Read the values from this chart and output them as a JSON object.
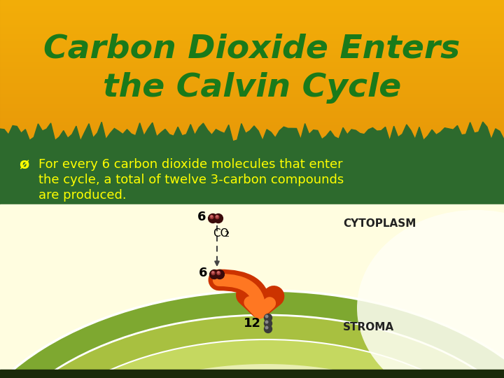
{
  "title_line1": "Carbon Dioxide Enters",
  "title_line2": "the Calvin Cycle",
  "title_color": "#1A7A1A",
  "title_bg_color": "#E8980A",
  "green_band_color": "#2D6A2D",
  "bullet_symbol": "ø",
  "bullet_text_line1": "For every 6 carbon dioxide molecules that enter",
  "bullet_text_line2": "the cycle, a total of twelve 3-carbon compounds",
  "bullet_text_line3": "are produced.",
  "bullet_text_color": "#FFFF00",
  "cytoplasm_label": "CYTOPLASM",
  "stroma_label": "STROMA",
  "num6_top": "6",
  "num6_mid": "6",
  "num12": "12",
  "diagram_cream": "#FFFDE0",
  "outer_green1": "#7EA830",
  "outer_green2": "#A8C040",
  "inner_cream": "#D8E880",
  "stroma_cream": "#E8EEB0",
  "arrow_dark": "#CC3300",
  "arrow_light": "#FF7722",
  "mol_dark": "#333333",
  "mol_mid": "#555555",
  "mol_light": "#888888",
  "co2_dark": "#5A0000",
  "co2_highlight": "#AA2222",
  "dashed_color": "#444444",
  "bottom_bar": "#3A3A1A",
  "title_fontsize": 34,
  "bullet_fontsize": 13
}
